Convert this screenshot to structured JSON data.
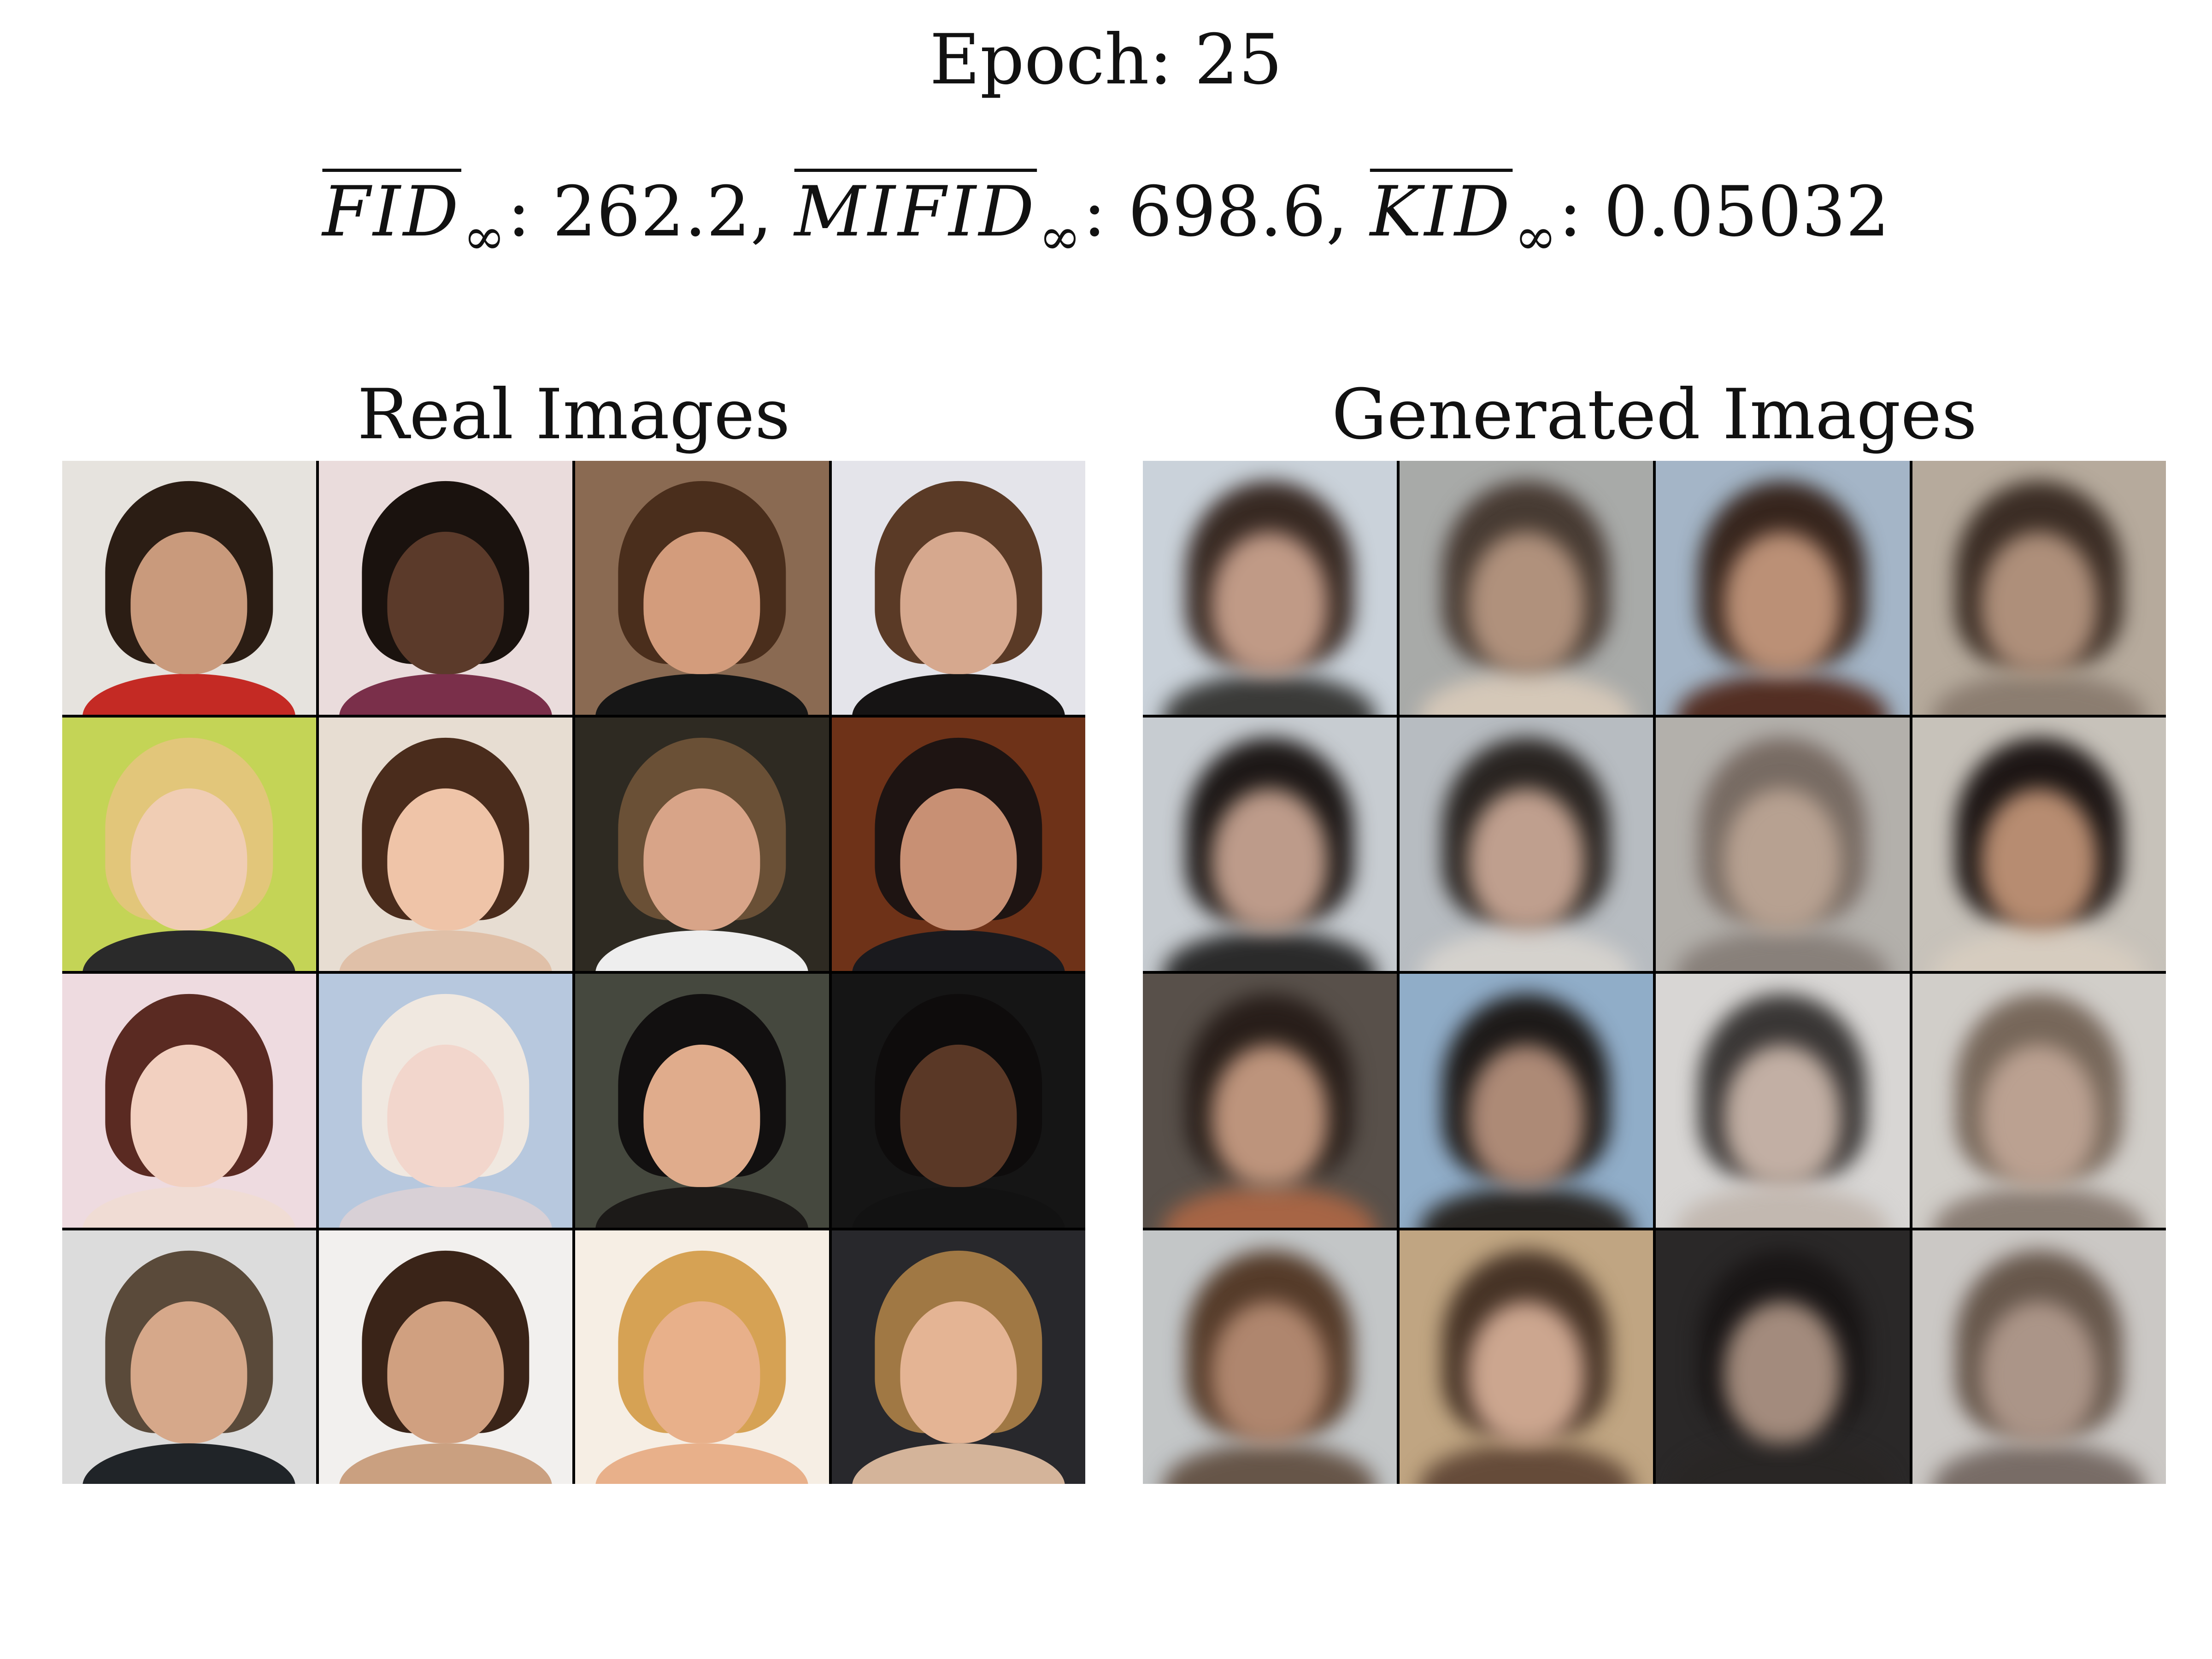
{
  "figure": {
    "title": "Epoch: 25",
    "metrics": [
      {
        "name": "FID",
        "subscript": "∞",
        "value": "262.2",
        "sep": ","
      },
      {
        "name": "MIFID",
        "subscript": "∞",
        "value": "698.6",
        "sep": ","
      },
      {
        "name": "KID",
        "subscript": "∞",
        "value": "0.05032",
        "sep": ""
      }
    ]
  },
  "panels": {
    "real": {
      "title": "Real Images",
      "tiles": [
        {
          "bg": "#e6e3de",
          "hair": "#2b1d14",
          "skin": "#c99a7c",
          "body": "#c42a24"
        },
        {
          "bg": "#eadcdc",
          "hair": "#1a120e",
          "skin": "#5b3a2a",
          "body": "#7a2f4a"
        },
        {
          "bg": "#8a6a52",
          "hair": "#4a2e1c",
          "skin": "#d39c7c",
          "body": "#161616"
        },
        {
          "bg": "#e4e4ea",
          "hair": "#5a3a26",
          "skin": "#d6a88e",
          "body": "#161414"
        },
        {
          "bg": "#c4d456",
          "hair": "#e2c67a",
          "skin": "#f0cdb4",
          "body": "#2a2a2a"
        },
        {
          "bg": "#e7ddd2",
          "hair": "#4a2c1c",
          "skin": "#efc4a8",
          "body": "#e0c0a8"
        },
        {
          "bg": "#2e2a22",
          "hair": "#6a5036",
          "skin": "#d8a488",
          "body": "#eeeeee"
        },
        {
          "bg": "#6e3218",
          "hair": "#1e1412",
          "skin": "#c89074",
          "body": "#1a1a1e"
        },
        {
          "bg": "#eedbe0",
          "hair": "#5a2a22",
          "skin": "#f2d0c0",
          "body": "#f0dcd4"
        },
        {
          "bg": "#b7c8de",
          "hair": "#f0e8e0",
          "skin": "#f2d6cc",
          "body": "#d8d0d6"
        },
        {
          "bg": "#45483e",
          "hair": "#121010",
          "skin": "#e0ac8c",
          "body": "#1c1a18"
        },
        {
          "bg": "#151515",
          "hair": "#0e0c0c",
          "skin": "#5a3826",
          "body": "#121212"
        },
        {
          "bg": "#dcdcdc",
          "hair": "#5a4a3a",
          "skin": "#d6a88a",
          "body": "#202428"
        },
        {
          "bg": "#f2f0ee",
          "hair": "#3a2418",
          "skin": "#d0a080",
          "body": "#caa080"
        },
        {
          "bg": "#f6eee4",
          "hair": "#d6a254",
          "skin": "#e8b08a",
          "body": "#e8b08a"
        },
        {
          "bg": "#28282c",
          "hair": "#a07844",
          "skin": "#e4b494",
          "body": "#d4b49a"
        }
      ]
    },
    "generated": {
      "title": "Generated Images",
      "tiles": [
        {
          "bg": "#c8d2dc",
          "hair": "#3a2820",
          "skin": "#c89880",
          "body": "#3a3a38"
        },
        {
          "bg": "#a8aaa8",
          "hair": "#4a3a30",
          "skin": "#b69076",
          "body": "#d8c8b4"
        },
        {
          "bg": "#a0b6cc",
          "hair": "#3a241a",
          "skin": "#c48e6e",
          "body": "#5a2c1e"
        },
        {
          "bg": "#b8aa98",
          "hair": "#3e2c22",
          "skin": "#b48e74",
          "body": "#8e7c6c"
        },
        {
          "bg": "#c6ccd2",
          "hair": "#1e1816",
          "skin": "#c49a84",
          "body": "#2a2a2a"
        },
        {
          "bg": "#b6bcc2",
          "hair": "#2a2420",
          "skin": "#c69e88",
          "body": "#d6d2cc"
        },
        {
          "bg": "#b4b0aa",
          "hair": "#7a6a60",
          "skin": "#bca08c",
          "body": "#8a8078"
        },
        {
          "bg": "#c8c2b8",
          "hair": "#1e1614",
          "skin": "#c08a68",
          "body": "#d8ccbc"
        },
        {
          "bg": "#5a5048",
          "hair": "#2a1e18",
          "skin": "#c69274",
          "body": "#b4623a"
        },
        {
          "bg": "#8aaed0",
          "hair": "#1e1a18",
          "skin": "#b48870",
          "body": "#2a2622"
        },
        {
          "bg": "#d8d6d4",
          "hair": "#3a3634",
          "skin": "#c6aea0",
          "body": "#c4b8ae"
        },
        {
          "bg": "#d2cec8",
          "hair": "#7a6656",
          "skin": "#c0a08c",
          "body": "#8c7c70"
        },
        {
          "bg": "#c2c6c8",
          "hair": "#5a3a24",
          "skin": "#b88466",
          "body": "#6a5444"
        },
        {
          "bg": "#c6a478",
          "hair": "#4a3222",
          "skin": "#d4a488",
          "body": "#6a4a34"
        },
        {
          "bg": "#2a2828",
          "hair": "#1a1616",
          "skin": "#a88a78",
          "body": "#2a2624"
        },
        {
          "bg": "#ccc8c4",
          "hair": "#6a5648",
          "skin": "#b09484",
          "body": "#7a6c64"
        }
      ]
    }
  }
}
